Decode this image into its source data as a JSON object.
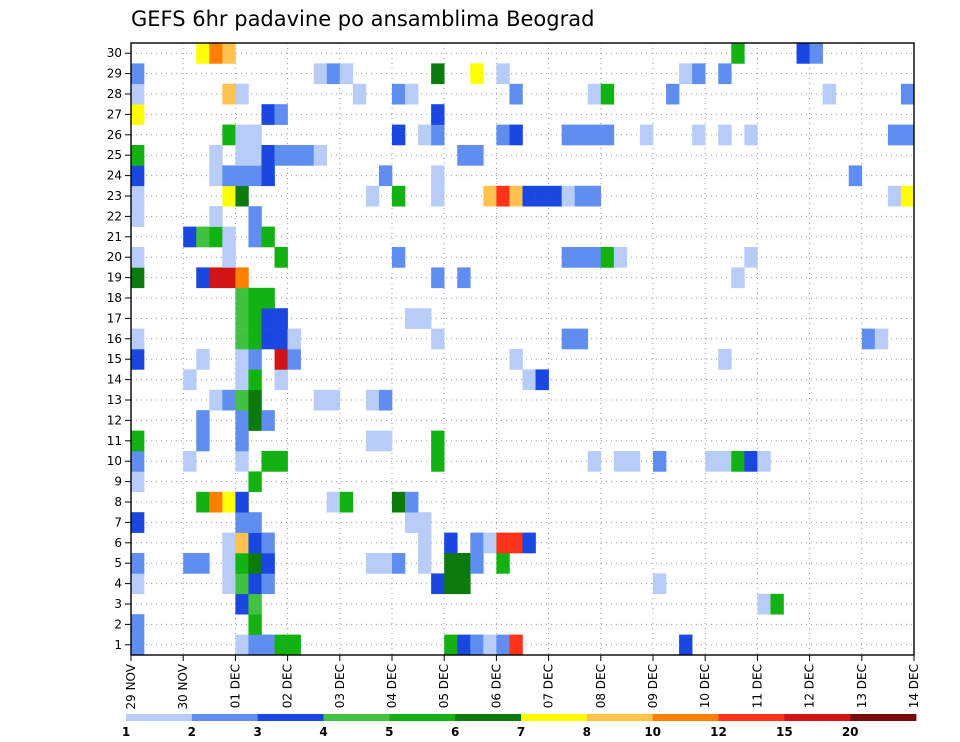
{
  "chart_data": {
    "type": "heatmap",
    "title": "GEFS 6hr padavine po ansamblima Beograd",
    "xlabel": "",
    "ylabel": "",
    "x_tick_labels": [
      "29 NOV",
      "30 NOV",
      "01 DEC",
      "02 DEC",
      "03 DEC",
      "04 DEC",
      "05 DEC",
      "06 DEC",
      "07 DEC",
      "08 DEC",
      "09 DEC",
      "10 DEC",
      "11 DEC",
      "12 DEC",
      "13 DEC",
      "14 DEC"
    ],
    "xlim": [
      0,
      60
    ],
    "ylim": [
      0,
      30
    ],
    "y_tick_labels": [
      "1",
      "2",
      "3",
      "4",
      "5",
      "6",
      "7",
      "8",
      "9",
      "10",
      "11",
      "12",
      "13",
      "14",
      "15",
      "16",
      "17",
      "18",
      "19",
      "20",
      "21",
      "22",
      "23",
      "24",
      "25",
      "26",
      "27",
      "28",
      "29",
      "30"
    ],
    "grid": true,
    "x_unit_note": "6-hour steps from 29 NOV",
    "colorbar": {
      "levels": [
        1,
        2,
        3,
        4,
        5,
        6,
        7,
        8,
        10,
        12,
        15,
        20
      ],
      "level_labels": [
        "1",
        "2",
        "3",
        "4",
        "5",
        "6",
        "7",
        "8",
        "10",
        "12",
        "15",
        "20"
      ],
      "colors": [
        "#b8ccf8",
        "#5f8ef0",
        "#1a47e0",
        "#42c242",
        "#11b211",
        "#0c7a0c",
        "#ffff00",
        "#ffc34d",
        "#ff8000",
        "#ff3319",
        "#d11414",
        "#7a0a0a"
      ]
    },
    "cells": [
      [
        0,
        1,
        2
      ],
      [
        0,
        2,
        2
      ],
      [
        0,
        4,
        1
      ],
      [
        0,
        5,
        2
      ],
      [
        0,
        7,
        3
      ],
      [
        0,
        9,
        1
      ],
      [
        0,
        10,
        2
      ],
      [
        0,
        11,
        5
      ],
      [
        0,
        15,
        3
      ],
      [
        0,
        16,
        1
      ],
      [
        0,
        19,
        6
      ],
      [
        0,
        20,
        1
      ],
      [
        0,
        22,
        1
      ],
      [
        0,
        23,
        1
      ],
      [
        0,
        24,
        3
      ],
      [
        0,
        25,
        5
      ],
      [
        0,
        27,
        7
      ],
      [
        0,
        28,
        1
      ],
      [
        0,
        29,
        2
      ],
      [
        4,
        0,
        6
      ],
      [
        4,
        5,
        2
      ],
      [
        4,
        10,
        1
      ],
      [
        4,
        14,
        1
      ],
      [
        4,
        21,
        3
      ],
      [
        5,
        0,
        3
      ],
      [
        5,
        5,
        2
      ],
      [
        5,
        8,
        5
      ],
      [
        5,
        11,
        2
      ],
      [
        5,
        12,
        2
      ],
      [
        5,
        15,
        1
      ],
      [
        5,
        19,
        3
      ],
      [
        5,
        21,
        4
      ],
      [
        5,
        30,
        7
      ],
      [
        6,
        0,
        7
      ],
      [
        6,
        8,
        9
      ],
      [
        6,
        13,
        1
      ],
      [
        6,
        19,
        11
      ],
      [
        6,
        21,
        5
      ],
      [
        6,
        22,
        1
      ],
      [
        6,
        24,
        1
      ],
      [
        6,
        25,
        1
      ],
      [
        6,
        30,
        9
      ],
      [
        7,
        4,
        1
      ],
      [
        7,
        5,
        1
      ],
      [
        7,
        6,
        1
      ],
      [
        7,
        8,
        7
      ],
      [
        7,
        13,
        2
      ],
      [
        7,
        19,
        11
      ],
      [
        7,
        20,
        1
      ],
      [
        7,
        21,
        1
      ],
      [
        7,
        23,
        7
      ],
      [
        7,
        24,
        2
      ],
      [
        7,
        26,
        5
      ],
      [
        7,
        28,
        8
      ],
      [
        7,
        30,
        8
      ],
      [
        8,
        0,
        2
      ],
      [
        8,
        1,
        1
      ],
      [
        8,
        3,
        3
      ],
      [
        8,
        4,
        4
      ],
      [
        8,
        5,
        5
      ],
      [
        8,
        6,
        8
      ],
      [
        8,
        7,
        2
      ],
      [
        8,
        8,
        3
      ],
      [
        8,
        10,
        1
      ],
      [
        8,
        11,
        2
      ],
      [
        8,
        12,
        2
      ],
      [
        8,
        13,
        4
      ],
      [
        8,
        14,
        1
      ],
      [
        8,
        15,
        1
      ],
      [
        8,
        16,
        4
      ],
      [
        8,
        17,
        4
      ],
      [
        8,
        18,
        4
      ],
      [
        8,
        19,
        9
      ],
      [
        8,
        23,
        6
      ],
      [
        8,
        24,
        2
      ],
      [
        8,
        25,
        1
      ],
      [
        8,
        26,
        1
      ],
      [
        8,
        28,
        1
      ],
      [
        9,
        1,
        2
      ],
      [
        9,
        2,
        5
      ],
      [
        9,
        3,
        4
      ],
      [
        9,
        4,
        3
      ],
      [
        9,
        5,
        6
      ],
      [
        9,
        6,
        3
      ],
      [
        9,
        7,
        2
      ],
      [
        9,
        9,
        5
      ],
      [
        9,
        12,
        6
      ],
      [
        9,
        13,
        6
      ],
      [
        9,
        14,
        5
      ],
      [
        9,
        15,
        2
      ],
      [
        9,
        16,
        5
      ],
      [
        9,
        17,
        5
      ],
      [
        9,
        18,
        5
      ],
      [
        9,
        21,
        2
      ],
      [
        9,
        22,
        2
      ],
      [
        9,
        24,
        2
      ],
      [
        9,
        25,
        1
      ],
      [
        9,
        26,
        1
      ],
      [
        10,
        1,
        2
      ],
      [
        10,
        4,
        2
      ],
      [
        10,
        5,
        3
      ],
      [
        10,
        6,
        2
      ],
      [
        10,
        10,
        5
      ],
      [
        10,
        12,
        2
      ],
      [
        10,
        16,
        3
      ],
      [
        10,
        17,
        3
      ],
      [
        10,
        18,
        5
      ],
      [
        10,
        21,
        5
      ],
      [
        10,
        24,
        3
      ],
      [
        10,
        25,
        3
      ],
      [
        10,
        27,
        3
      ],
      [
        11,
        1,
        5
      ],
      [
        11,
        10,
        5
      ],
      [
        11,
        14,
        1
      ],
      [
        11,
        15,
        11
      ],
      [
        11,
        16,
        3
      ],
      [
        11,
        17,
        3
      ],
      [
        11,
        20,
        5
      ],
      [
        11,
        25,
        2
      ],
      [
        11,
        27,
        2
      ],
      [
        12,
        1,
        5
      ],
      [
        12,
        15,
        2
      ],
      [
        12,
        16,
        1
      ],
      [
        12,
        25,
        2
      ],
      [
        13,
        25,
        2
      ],
      [
        14,
        13,
        1
      ],
      [
        14,
        25,
        1
      ],
      [
        14,
        29,
        1
      ],
      [
        15,
        8,
        1
      ],
      [
        15,
        13,
        1
      ],
      [
        15,
        29,
        2
      ],
      [
        16,
        8,
        5
      ],
      [
        16,
        29,
        1
      ],
      [
        17,
        28,
        1
      ],
      [
        18,
        5,
        1
      ],
      [
        18,
        11,
        1
      ],
      [
        18,
        13,
        1
      ],
      [
        18,
        23,
        1
      ],
      [
        19,
        5,
        1
      ],
      [
        19,
        11,
        1
      ],
      [
        19,
        13,
        2
      ],
      [
        19,
        24,
        2
      ],
      [
        20,
        5,
        2
      ],
      [
        20,
        8,
        6
      ],
      [
        20,
        20,
        2
      ],
      [
        20,
        23,
        5
      ],
      [
        20,
        26,
        3
      ],
      [
        20,
        28,
        2
      ],
      [
        21,
        0,
        2
      ],
      [
        21,
        7,
        1
      ],
      [
        21,
        8,
        2
      ],
      [
        21,
        17,
        1
      ],
      [
        21,
        28,
        1
      ],
      [
        22,
        5,
        1
      ],
      [
        22,
        6,
        1
      ],
      [
        22,
        7,
        1
      ],
      [
        22,
        17,
        1
      ],
      [
        22,
        26,
        1
      ],
      [
        23,
        0,
        7
      ],
      [
        23,
        4,
        3
      ],
      [
        23,
        10,
        5
      ],
      [
        23,
        11,
        5
      ],
      [
        23,
        16,
        1
      ],
      [
        23,
        19,
        2
      ],
      [
        23,
        23,
        1
      ],
      [
        23,
        24,
        1
      ],
      [
        23,
        26,
        2
      ],
      [
        23,
        27,
        3
      ],
      [
        23,
        29,
        6
      ],
      [
        24,
        1,
        5
      ],
      [
        24,
        4,
        6
      ],
      [
        24,
        5,
        6
      ],
      [
        24,
        6,
        3
      ],
      [
        25,
        1,
        3
      ],
      [
        25,
        4,
        6
      ],
      [
        25,
        5,
        6
      ],
      [
        25,
        19,
        2
      ],
      [
        25,
        25,
        2
      ],
      [
        26,
        1,
        2
      ],
      [
        26,
        5,
        2
      ],
      [
        26,
        6,
        2
      ],
      [
        26,
        25,
        2
      ],
      [
        26,
        29,
        7
      ],
      [
        27,
        1,
        1
      ],
      [
        27,
        6,
        1
      ],
      [
        27,
        23,
        8
      ],
      [
        28,
        1,
        2
      ],
      [
        28,
        5,
        5
      ],
      [
        28,
        6,
        10
      ],
      [
        28,
        23,
        10
      ],
      [
        28,
        26,
        2
      ],
      [
        28,
        29,
        1
      ],
      [
        29,
        1,
        10
      ],
      [
        29,
        6,
        10
      ],
      [
        29,
        15,
        1
      ],
      [
        29,
        23,
        8
      ],
      [
        29,
        26,
        3
      ],
      [
        29,
        28,
        2
      ],
      [
        30,
        6,
        3
      ],
      [
        30,
        14,
        1
      ],
      [
        30,
        23,
        3
      ],
      [
        31,
        14,
        3
      ],
      [
        31,
        23,
        3
      ],
      [
        32,
        23,
        3
      ],
      [
        33,
        16,
        2
      ],
      [
        33,
        20,
        2
      ],
      [
        33,
        23,
        1
      ],
      [
        33,
        26,
        2
      ],
      [
        34,
        16,
        2
      ],
      [
        34,
        20,
        2
      ],
      [
        34,
        23,
        2
      ],
      [
        34,
        26,
        2
      ],
      [
        35,
        10,
        1
      ],
      [
        35,
        20,
        2
      ],
      [
        35,
        23,
        2
      ],
      [
        35,
        26,
        2
      ],
      [
        35,
        28,
        1
      ],
      [
        36,
        20,
        5
      ],
      [
        36,
        26,
        2
      ],
      [
        36,
        28,
        5
      ],
      [
        37,
        10,
        1
      ],
      [
        37,
        20,
        1
      ],
      [
        38,
        10,
        1
      ],
      [
        39,
        26,
        1
      ],
      [
        40,
        4,
        1
      ],
      [
        40,
        10,
        2
      ],
      [
        41,
        28,
        2
      ],
      [
        42,
        1,
        3
      ],
      [
        42,
        29,
        1
      ],
      [
        43,
        0,
        1
      ],
      [
        43,
        26,
        1
      ],
      [
        43,
        29,
        2
      ],
      [
        44,
        10,
        1
      ],
      [
        45,
        10,
        1
      ],
      [
        45,
        15,
        1
      ],
      [
        45,
        26,
        1
      ],
      [
        45,
        29,
        2
      ],
      [
        46,
        10,
        5
      ],
      [
        46,
        19,
        1
      ],
      [
        46,
        30,
        5
      ],
      [
        47,
        10,
        3
      ],
      [
        47,
        20,
        1
      ],
      [
        47,
        26,
        1
      ],
      [
        48,
        3,
        1
      ],
      [
        48,
        10,
        1
      ],
      [
        49,
        3,
        5
      ],
      [
        51,
        30,
        3
      ],
      [
        52,
        30,
        2
      ],
      [
        53,
        28,
        1
      ],
      [
        55,
        24,
        2
      ],
      [
        56,
        16,
        2
      ],
      [
        57,
        16,
        1
      ],
      [
        58,
        23,
        1
      ],
      [
        58,
        26,
        2
      ],
      [
        59,
        23,
        7
      ],
      [
        59,
        26,
        2
      ],
      [
        59,
        28,
        2
      ]
    ]
  }
}
